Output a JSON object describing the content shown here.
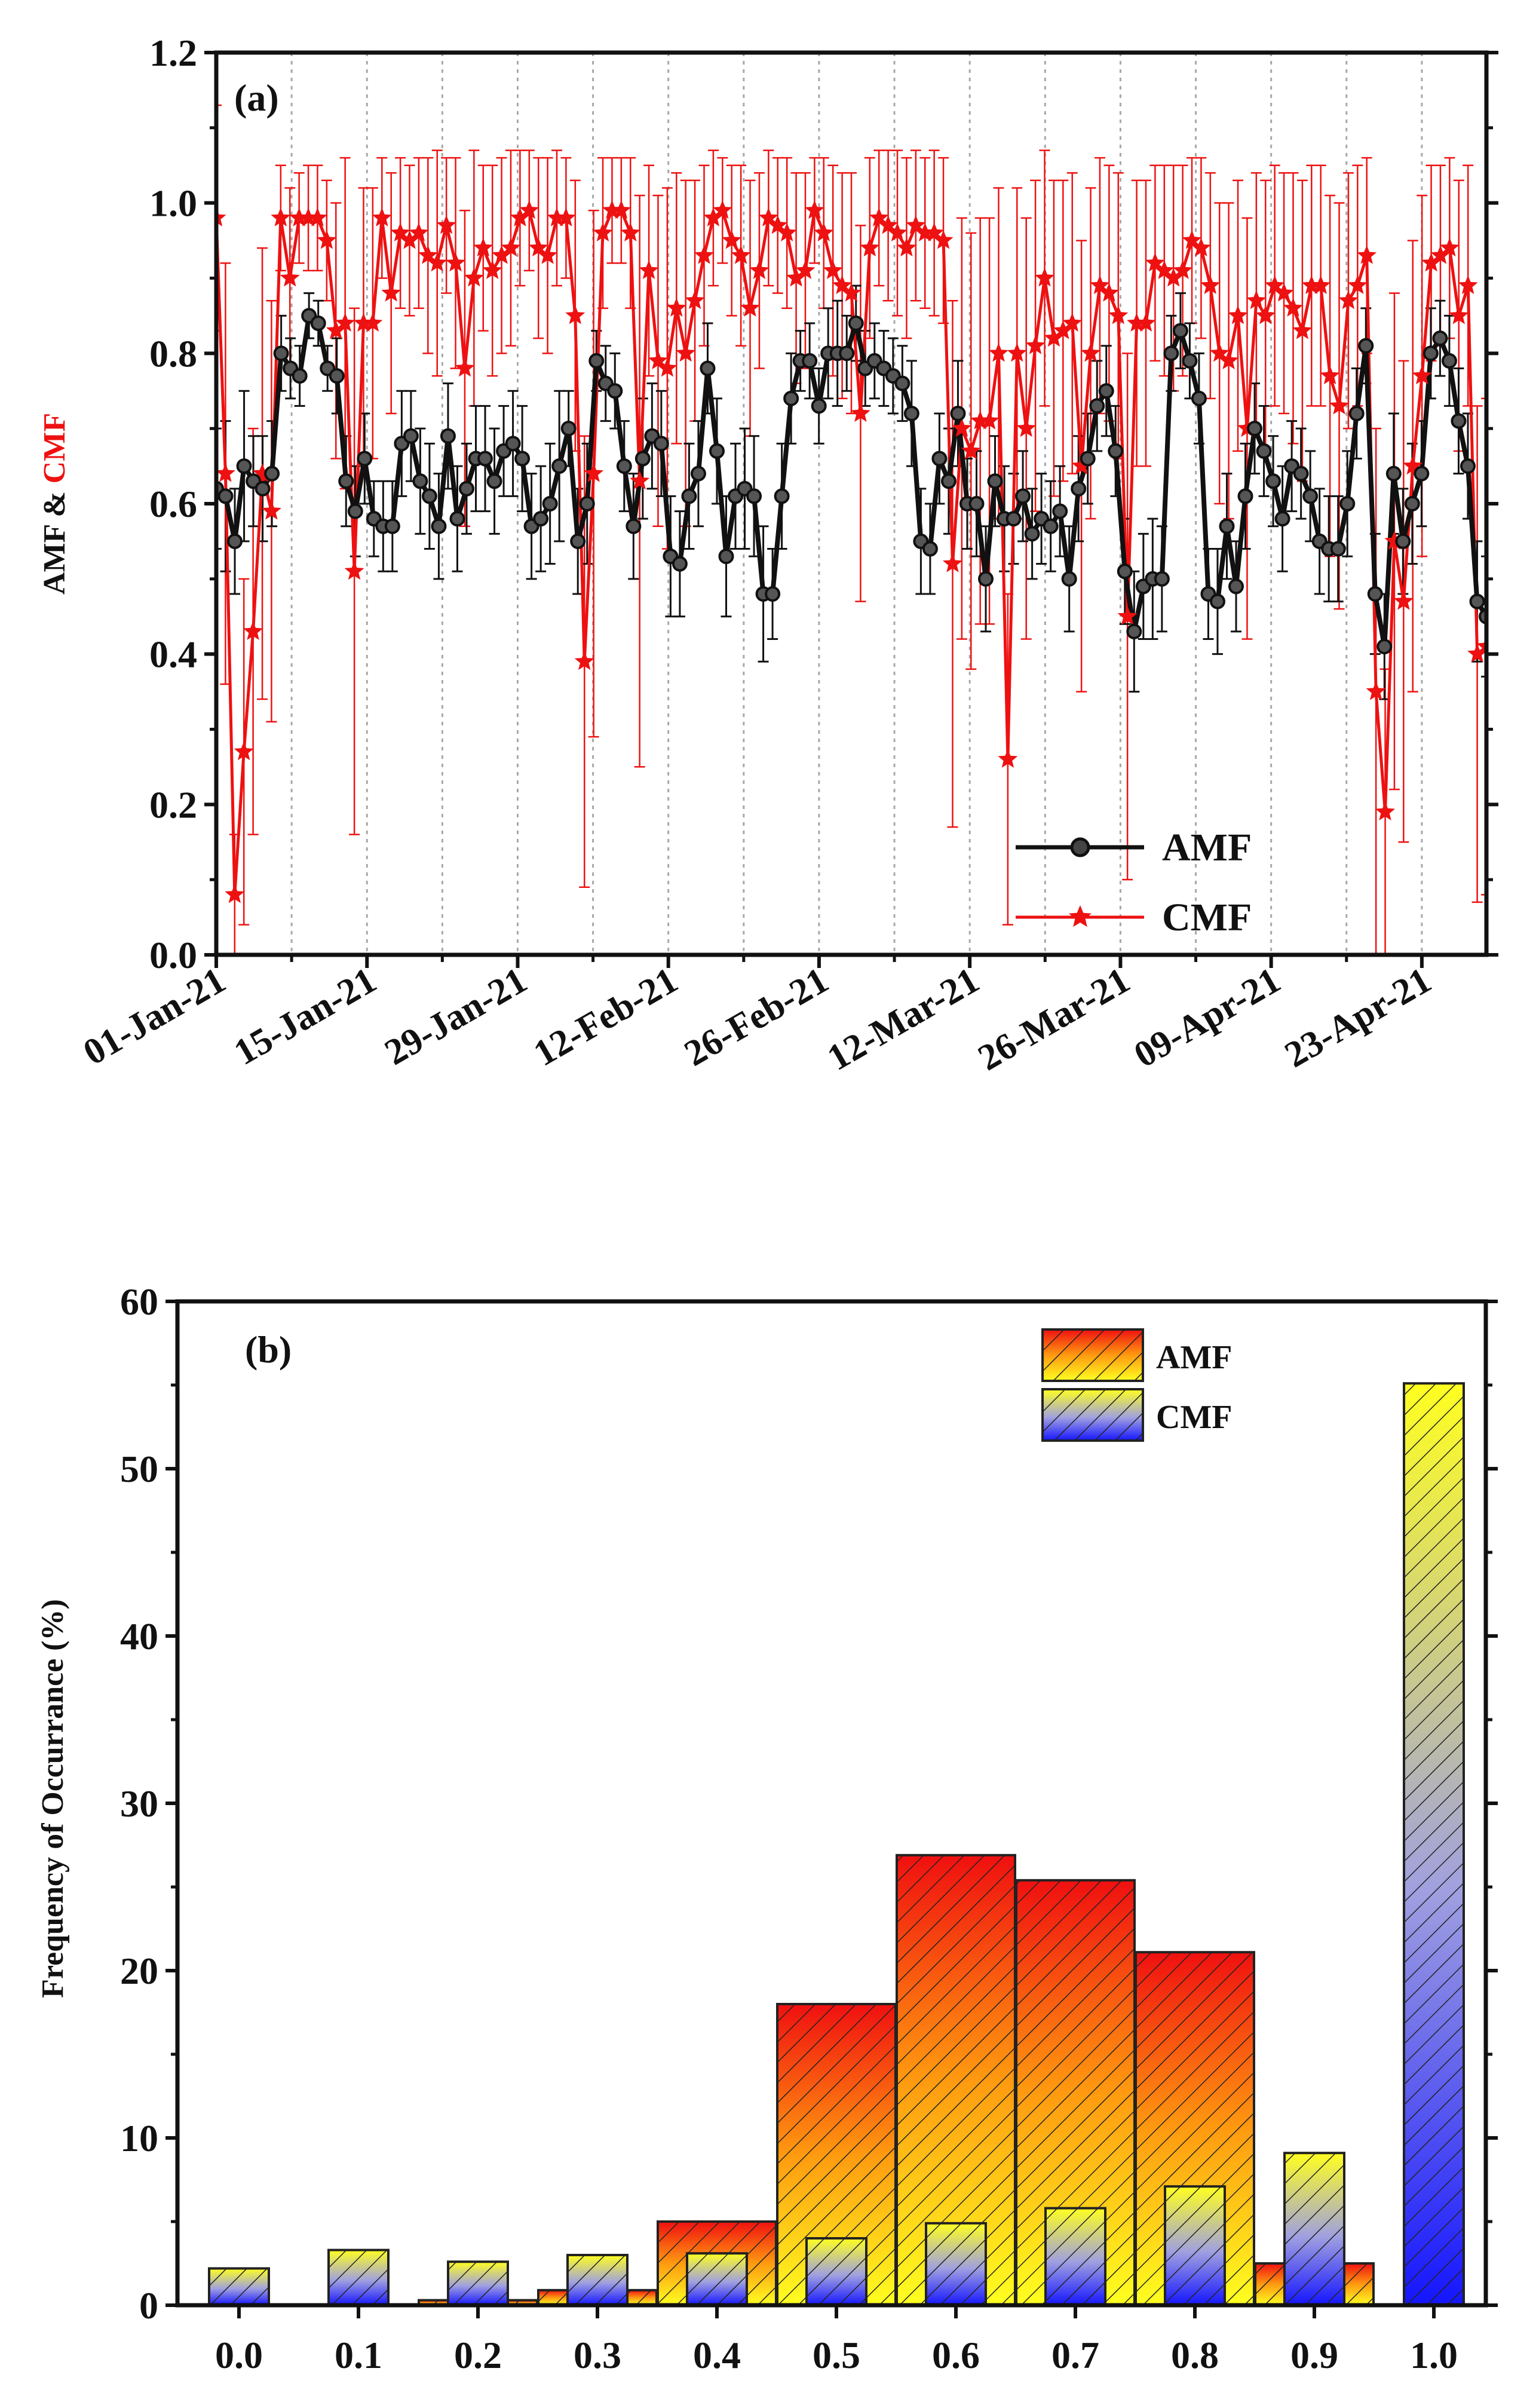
{
  "chart_data": [
    {
      "type": "line",
      "panel_label": "(a)",
      "ylabel_parts": [
        "AMF",
        " & ",
        "CMF"
      ],
      "ylabel_colors": [
        "#111111",
        "#111111",
        "#ee1111"
      ],
      "ylim": [
        0,
        1.2
      ],
      "yticks": [
        "0.0",
        "0.2",
        "0.4",
        "0.6",
        "0.8",
        "1.0",
        "1.2"
      ],
      "xlabels": [
        "01-Jan-21",
        "15-Jan-21",
        "29-Jan-21",
        "12-Feb-21",
        "26-Feb-21",
        "12-Mar-21",
        "26-Mar-21",
        "09-Apr-21",
        "23-Apr-21"
      ],
      "x_range_days": [
        0,
        118
      ],
      "grid": "vertical dotted every 7 days",
      "legend": "bottom-right",
      "series": [
        {
          "name": "AMF",
          "color": "#111111",
          "marker": "circle",
          "values": [
            0.62,
            0.61,
            0.55,
            0.65,
            0.63,
            0.62,
            0.64,
            0.8,
            0.78,
            0.77,
            0.85,
            0.84,
            0.78,
            0.77,
            0.63,
            0.59,
            0.66,
            0.58,
            0.57,
            0.57,
            0.68,
            0.69,
            0.63,
            0.61,
            0.57,
            0.69,
            0.58,
            0.62,
            0.66,
            0.66,
            0.63,
            0.67,
            0.68,
            0.66,
            0.57,
            0.58,
            0.6,
            0.65,
            0.7,
            0.55,
            0.6,
            0.79,
            0.76,
            0.75,
            0.65,
            0.57,
            0.66,
            0.69,
            0.68,
            0.53,
            0.52,
            0.61,
            0.64,
            0.78,
            0.67,
            0.53,
            0.61,
            0.62,
            0.61,
            0.48,
            0.48,
            0.61,
            0.74,
            0.79,
            0.79,
            0.73,
            0.8,
            0.8,
            0.8,
            0.84,
            0.78,
            0.79,
            0.78,
            0.77,
            0.76,
            0.72,
            0.55,
            0.54,
            0.66,
            0.63,
            0.72,
            0.6,
            0.6,
            0.5,
            0.63,
            0.58,
            0.58,
            0.61,
            0.56,
            0.58,
            0.57,
            0.59,
            0.5,
            0.62,
            0.66,
            0.73,
            0.75,
            0.67,
            0.51,
            0.43,
            0.49,
            0.5,
            0.5,
            0.8,
            0.83,
            0.79,
            0.74,
            0.48,
            0.47,
            0.57,
            0.49,
            0.61,
            0.7,
            0.67,
            0.63,
            0.58,
            0.65,
            0.64,
            0.61,
            0.55,
            0.54,
            0.54,
            0.6,
            0.72,
            0.81,
            0.48,
            0.41,
            0.64,
            0.55,
            0.6,
            0.64,
            0.8,
            0.82,
            0.79,
            0.71,
            0.65,
            0.47,
            0.45
          ],
          "errors": [
            0.08,
            0.1,
            0.07,
            0.1,
            0.06,
            0.07,
            0.07,
            0.05,
            0.04,
            0.04,
            0.03,
            0.03,
            0.03,
            0.05,
            0.06,
            0.06,
            0.06,
            0.05,
            0.06,
            0.06,
            0.07,
            0.06,
            0.07,
            0.07,
            0.07,
            0.07,
            0.07,
            0.06,
            0.07,
            0.07,
            0.07,
            0.06,
            0.07,
            0.07,
            0.07,
            0.07,
            0.08,
            0.1,
            0.05,
            0.07,
            0.08,
            0.04,
            0.05,
            0.05,
            0.06,
            0.07,
            0.08,
            0.07,
            0.07,
            0.08,
            0.07,
            0.07,
            0.07,
            0.06,
            0.07,
            0.08,
            0.07,
            0.08,
            0.08,
            0.09,
            0.06,
            0.07,
            0.06,
            0.04,
            0.05,
            0.05,
            0.06,
            0.07,
            0.05,
            0.05,
            0.05,
            0.05,
            0.05,
            0.05,
            0.05,
            0.07,
            0.07,
            0.06,
            0.06,
            0.07,
            0.07,
            0.06,
            0.07,
            0.07,
            0.06,
            0.07,
            0.06,
            0.06,
            0.06,
            0.06,
            0.06,
            0.06,
            0.07,
            0.07,
            0.06,
            0.06,
            0.06,
            0.06,
            0.07,
            0.08,
            0.07,
            0.08,
            0.07,
            0.05,
            0.05,
            0.05,
            0.06,
            0.06,
            0.07,
            0.07,
            0.06,
            0.07,
            0.06,
            0.06,
            0.06,
            0.07,
            0.06,
            0.06,
            0.06,
            0.07,
            0.07,
            0.07,
            0.07,
            0.06,
            0.05,
            0.08,
            0.07,
            0.08,
            0.07,
            0.08,
            0.07,
            0.06,
            0.05,
            0.06,
            0.07,
            0.07,
            0.08,
            0.08
          ]
        },
        {
          "name": "CMF",
          "color": "#ee1111",
          "marker": "star",
          "values": [
            0.98,
            0.64,
            0.08,
            0.27,
            0.43,
            0.64,
            0.59,
            0.98,
            0.9,
            0.98,
            0.98,
            0.98,
            0.95,
            0.83,
            0.84,
            0.51,
            0.84,
            0.84,
            0.98,
            0.88,
            0.96,
            0.95,
            0.96,
            0.93,
            0.92,
            0.97,
            0.92,
            0.78,
            0.9,
            0.94,
            0.91,
            0.93,
            0.94,
            0.98,
            0.99,
            0.94,
            0.93,
            0.98,
            0.98,
            0.85,
            0.39,
            0.64,
            0.96,
            0.99,
            0.99,
            0.96,
            0.63,
            0.91,
            0.79,
            0.78,
            0.86,
            0.8,
            0.87,
            0.93,
            0.98,
            0.99,
            0.95,
            0.93,
            0.86,
            0.91,
            0.98,
            0.97,
            0.96,
            0.9,
            0.91,
            0.99,
            0.96,
            0.91,
            0.89,
            0.88,
            0.72,
            0.94,
            0.98,
            0.97,
            0.96,
            0.94,
            0.97,
            0.96,
            0.96,
            0.95,
            0.52,
            0.7,
            0.67,
            0.71,
            0.71,
            0.8,
            0.26,
            0.8,
            0.7,
            0.81,
            0.9,
            0.82,
            0.83,
            0.84,
            0.65,
            0.8,
            0.89,
            0.88,
            0.85,
            0.45,
            0.84,
            0.84,
            0.92,
            0.91,
            0.9,
            0.91,
            0.95,
            0.94,
            0.89,
            0.8,
            0.79,
            0.85,
            0.7,
            0.87,
            0.85,
            0.89,
            0.88,
            0.86,
            0.83,
            0.89,
            0.89,
            0.77,
            0.73,
            0.87,
            0.89,
            0.93,
            0.35,
            0.19,
            0.55,
            0.47,
            0.65,
            0.77,
            0.92,
            0.93,
            0.94,
            0.85,
            0.89,
            0.4,
            0.41
          ],
          "errors": [
            0.15,
            0.28,
            0.08,
            0.23,
            0.27,
            0.3,
            0.28,
            0.07,
            0.12,
            0.06,
            0.07,
            0.07,
            0.08,
            0.17,
            0.22,
            0.35,
            0.18,
            0.18,
            0.08,
            0.16,
            0.1,
            0.1,
            0.1,
            0.13,
            0.15,
            0.09,
            0.14,
            0.21,
            0.17,
            0.11,
            0.14,
            0.13,
            0.13,
            0.09,
            0.08,
            0.12,
            0.13,
            0.09,
            0.08,
            0.18,
            0.3,
            0.35,
            0.1,
            0.07,
            0.07,
            0.1,
            0.38,
            0.14,
            0.22,
            0.24,
            0.18,
            0.23,
            0.16,
            0.12,
            0.09,
            0.07,
            0.1,
            0.12,
            0.17,
            0.13,
            0.09,
            0.09,
            0.1,
            0.14,
            0.13,
            0.07,
            0.1,
            0.14,
            0.15,
            0.16,
            0.25,
            0.12,
            0.09,
            0.1,
            0.11,
            0.12,
            0.1,
            0.1,
            0.11,
            0.11,
            0.35,
            0.28,
            0.29,
            0.27,
            0.27,
            0.22,
            0.22,
            0.22,
            0.28,
            0.22,
            0.17,
            0.21,
            0.2,
            0.2,
            0.3,
            0.22,
            0.17,
            0.17,
            0.19,
            0.35,
            0.19,
            0.19,
            0.13,
            0.14,
            0.15,
            0.14,
            0.11,
            0.12,
            0.15,
            0.2,
            0.21,
            0.18,
            0.28,
            0.17,
            0.18,
            0.16,
            0.16,
            0.18,
            0.2,
            0.16,
            0.16,
            0.24,
            0.27,
            0.17,
            0.16,
            0.13,
            0.35,
            0.19,
            0.33,
            0.32,
            0.3,
            0.24,
            0.13,
            0.12,
            0.12,
            0.18,
            0.16,
            0.33,
            0.33
          ]
        }
      ]
    },
    {
      "type": "bar",
      "panel_label": "(b)",
      "ylabel": "Frequency of Occurrance (%)",
      "xlabel": "",
      "ylim": [
        0,
        60
      ],
      "yticks": [
        "0",
        "10",
        "20",
        "30",
        "40",
        "50",
        "60"
      ],
      "categories": [
        "0.0",
        "0.1",
        "0.2",
        "0.3",
        "0.4",
        "0.5",
        "0.6",
        "0.7",
        "0.8",
        "0.9",
        "1.0"
      ],
      "legend": "top-right",
      "series": [
        {
          "name": "AMF",
          "gradient": [
            "#f01010",
            "#ff9a10",
            "#ffff20"
          ],
          "values": [
            0.0,
            0.0,
            0.3,
            0.9,
            5.0,
            18.0,
            26.9,
            25.4,
            21.1,
            2.5,
            0.0
          ]
        },
        {
          "name": "CMF",
          "gradient": [
            "#ffff20",
            "#a0a0e0",
            "#1515ff"
          ],
          "values": [
            2.2,
            3.3,
            2.6,
            3.0,
            3.1,
            4.0,
            4.9,
            5.8,
            7.1,
            9.1,
            55.1
          ]
        }
      ]
    }
  ]
}
